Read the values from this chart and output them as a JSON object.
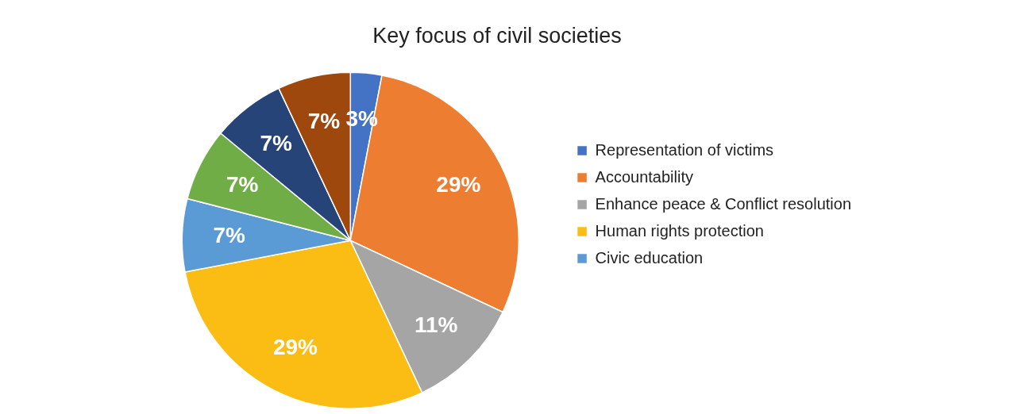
{
  "chart_data": {
    "type": "pie",
    "title": "Key focus of civil societies",
    "categories": [
      "Representation of victims",
      "Accountability",
      "Enhance peace & Conflict resolution",
      "Human rights protection",
      "Civic education",
      null,
      null,
      null
    ],
    "values": [
      3,
      29,
      11,
      29,
      7,
      7,
      7,
      7
    ],
    "colors": [
      "#4472c4",
      "#ed7d31",
      "#a5a5a5",
      "#fbbc14",
      "#5b9bd5",
      "#70ad47",
      "#264478",
      "#9e480e"
    ],
    "value_labels": [
      "3%",
      "29%",
      "11%",
      "29%",
      "7%",
      "7%",
      "7%",
      "7%"
    ],
    "legend": "right"
  }
}
